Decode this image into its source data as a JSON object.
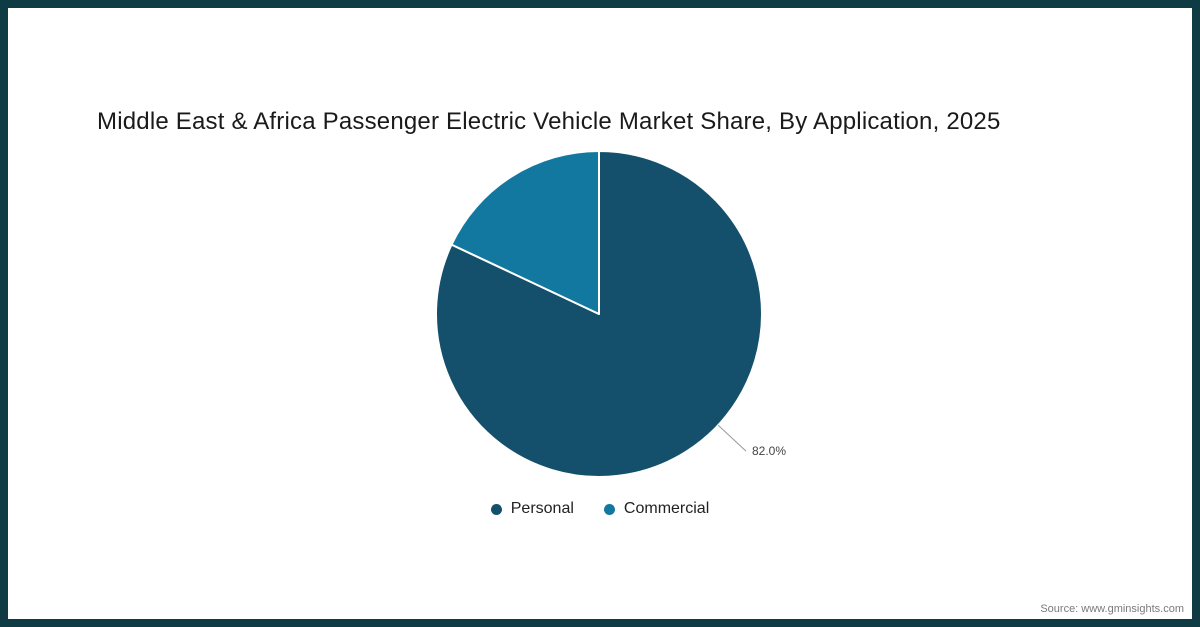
{
  "title": "Middle East & Africa Passenger Electric Vehicle Market Share, By Application, 2025",
  "source": "Source: www.gminsights.com",
  "colors": {
    "frame": "#0f3b45",
    "background": "#ffffff",
    "callout_line": "#999999",
    "callout_text": "#444444"
  },
  "chart_data": {
    "type": "pie",
    "title": "Middle East & Africa Passenger Electric Vehicle Market Share, By Application, 2025",
    "segments": [
      {
        "label": "Personal",
        "value": 82.0,
        "color": "#14506b",
        "data_label": "82.0%"
      },
      {
        "label": "Commercial",
        "value": 18.0,
        "color": "#1278a0",
        "data_label": ""
      }
    ],
    "start_angle_deg": 0,
    "direction": "clockwise",
    "legend_position": "bottom",
    "callout": {
      "text": "82.0%",
      "angle_deg": 133
    }
  }
}
